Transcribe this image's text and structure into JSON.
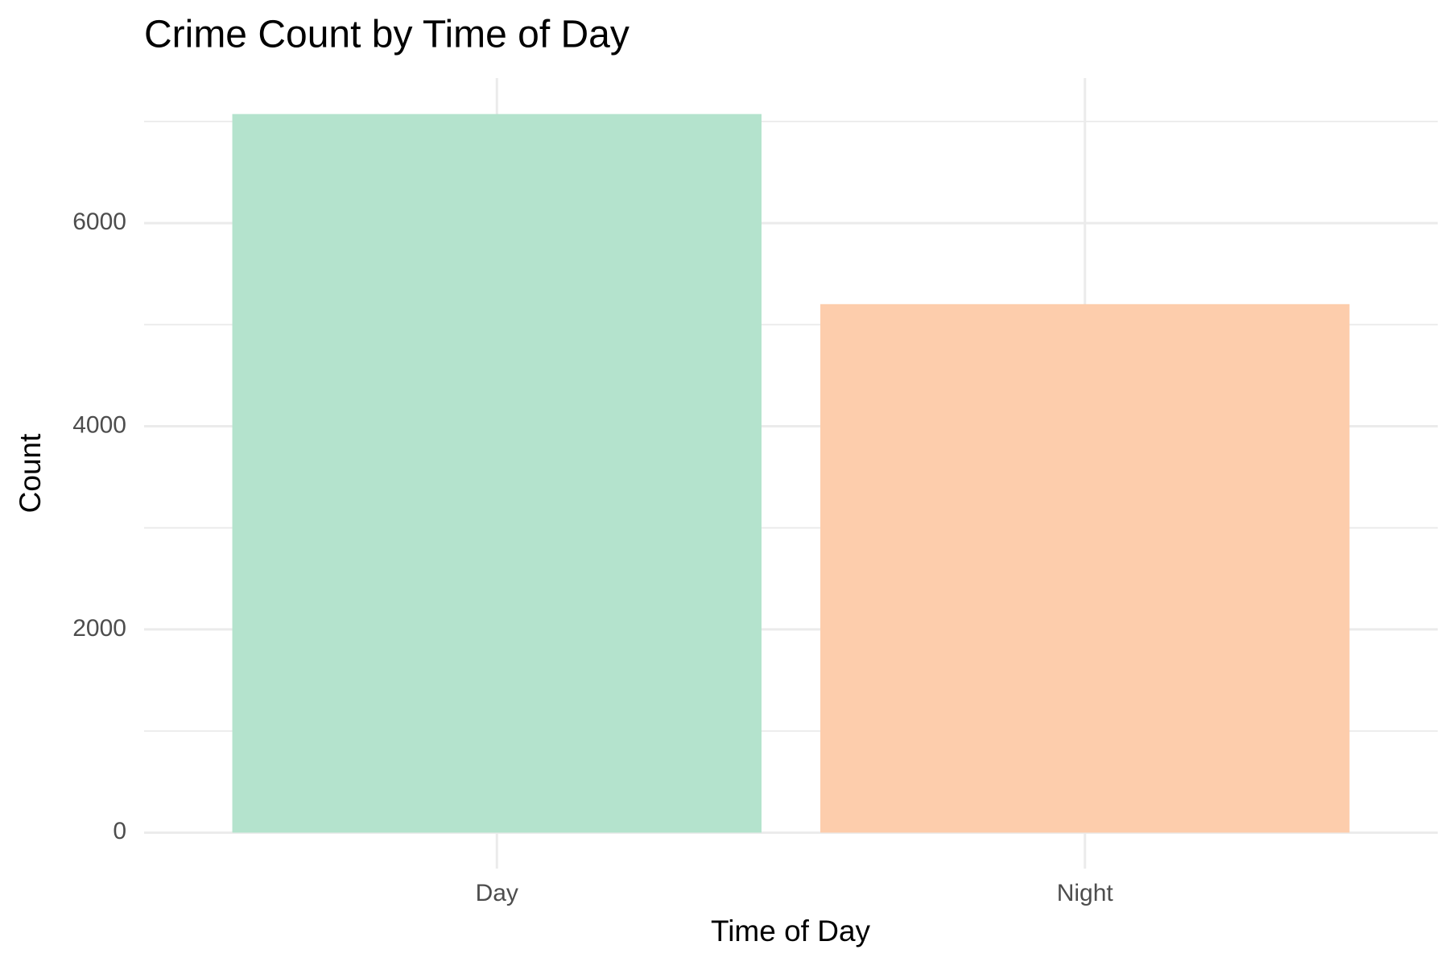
{
  "chart_data": {
    "type": "bar",
    "title": "Crime Count by Time of Day",
    "x_label": "Time of Day",
    "y_label": "Count",
    "categories": [
      "Day",
      "Night"
    ],
    "values": [
      7073,
      5202
    ],
    "colors": [
      "#b4e3cd",
      "#fdcdac"
    ],
    "ylim": [
      -354,
      7427
    ],
    "yticks": [
      0,
      2000,
      4000,
      6000
    ],
    "minor_yticks": [
      1000,
      3000,
      5000,
      7000
    ],
    "grid": true
  }
}
